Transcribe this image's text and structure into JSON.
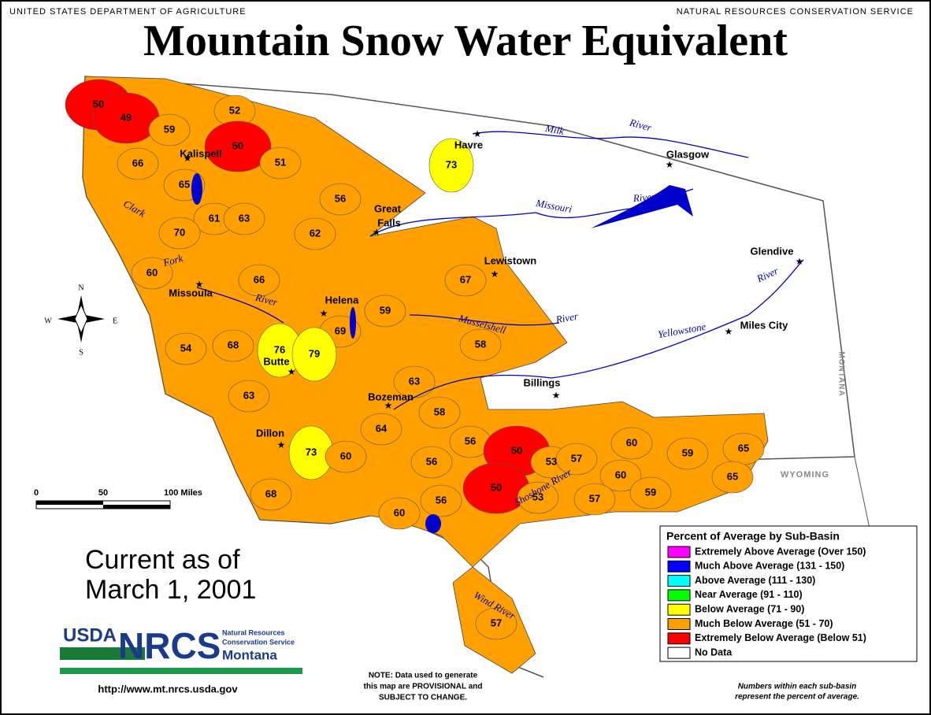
{
  "header": {
    "left": "UNITED STATES DEPARTMENT OF AGRICULTURE",
    "right": "NATURAL RESOURCES CONSERVATION SERVICE",
    "title": "Mountain Snow Water Equivalent"
  },
  "basins": [
    {
      "value": 50,
      "color": "#ff0000"
    },
    {
      "value": 49,
      "color": "#ff0000"
    },
    {
      "value": 52,
      "color": "#ffa000"
    },
    {
      "value": 59,
      "color": "#ffa000"
    },
    {
      "value": 50,
      "color": "#ff0000"
    },
    {
      "value": 66,
      "color": "#ffa000"
    },
    {
      "value": 51,
      "color": "#ffa000"
    },
    {
      "value": 65,
      "color": "#ffa000"
    },
    {
      "value": 56,
      "color": "#ffa000"
    },
    {
      "value": 73,
      "color": "#ffff00"
    },
    {
      "value": 61,
      "color": "#ffa000"
    },
    {
      "value": 63,
      "color": "#ffa000"
    },
    {
      "value": 70,
      "color": "#ffa000"
    },
    {
      "value": 62,
      "color": "#ffa000"
    },
    {
      "value": 67,
      "color": "#ffa000"
    },
    {
      "value": 60,
      "color": "#ffa000"
    },
    {
      "value": 66,
      "color": "#ffa000"
    },
    {
      "value": 59,
      "color": "#ffa000"
    },
    {
      "value": 69,
      "color": "#ffa000"
    },
    {
      "value": 58,
      "color": "#ffa000"
    },
    {
      "value": 54,
      "color": "#ffa000"
    },
    {
      "value": 68,
      "color": "#ffa000"
    },
    {
      "value": 76,
      "color": "#ffff00"
    },
    {
      "value": 79,
      "color": "#ffff00"
    },
    {
      "value": 63,
      "color": "#ffa000"
    },
    {
      "value": 63,
      "color": "#ffa000"
    },
    {
      "value": 58,
      "color": "#ffa000"
    },
    {
      "value": 64,
      "color": "#ffa000"
    },
    {
      "value": 56,
      "color": "#ffa000"
    },
    {
      "value": 50,
      "color": "#ff0000"
    },
    {
      "value": 53,
      "color": "#ffa000"
    },
    {
      "value": 57,
      "color": "#ffa000"
    },
    {
      "value": 60,
      "color": "#ffa000"
    },
    {
      "value": 59,
      "color": "#ffa000"
    },
    {
      "value": 65,
      "color": "#ffa000"
    },
    {
      "value": 73,
      "color": "#ffff00"
    },
    {
      "value": 60,
      "color": "#ffa000"
    },
    {
      "value": 56,
      "color": "#ffa000"
    },
    {
      "value": 50,
      "color": "#ff0000"
    },
    {
      "value": 53,
      "color": "#ffa000"
    },
    {
      "value": 60,
      "color": "#ffa000"
    },
    {
      "value": 57,
      "color": "#ffa000"
    },
    {
      "value": 59,
      "color": "#ffa000"
    },
    {
      "value": 65,
      "color": "#ffa000"
    },
    {
      "value": 68,
      "color": "#ffa000"
    },
    {
      "value": 56,
      "color": "#ffa000"
    },
    {
      "value": 60,
      "color": "#ffa000"
    },
    {
      "value": 57,
      "color": "#ffa000"
    }
  ],
  "places": [
    "Kalispell",
    "Havre",
    "Glasgow",
    "Great",
    "Falls",
    "Lewistown",
    "Glendive",
    "Missoula",
    "Helena",
    "Miles City",
    "Butte",
    "Billings",
    "Bozeman",
    "Dillon"
  ],
  "rivers": [
    "Milk",
    "River",
    "Missouri",
    "River",
    "Clark",
    "Fork",
    "River",
    "Musselshell",
    "River",
    "Yellowstone",
    "River",
    "Shoshone River",
    "Wind River"
  ],
  "states": [
    "MONTANA",
    "WYOMING"
  ],
  "compass": [
    "N",
    "E",
    "S",
    "W"
  ],
  "scale": [
    "0",
    "50",
    "100 Miles"
  ],
  "current": [
    "Current as of",
    "March 1, 2001"
  ],
  "logo": {
    "usda": "USDA",
    "nrcs": "NRCS",
    "line1": "Natural Resources",
    "line2": "Conservation Service",
    "state": "Montana"
  },
  "url": "http://www.mt.nrcs.usda.gov",
  "note": [
    "NOTE: Data used to generate",
    "this map are PROVISIONAL and",
    "SUBJECT TO CHANGE."
  ],
  "legend": {
    "title": "Percent of Average by Sub-Basin",
    "items": [
      {
        "label": "Extremely Above Average (Over 150)",
        "color": "#ff00ff"
      },
      {
        "label": "Much Above Average (131 - 150)",
        "color": "#0000ff"
      },
      {
        "label": "Above Average (111 - 130)",
        "color": "#00ffff"
      },
      {
        "label": "Near Average (91 - 110)",
        "color": "#00ff00"
      },
      {
        "label": "Below Average (71 - 90)",
        "color": "#ffff00"
      },
      {
        "label": "Much Below Average (51 - 70)",
        "color": "#ffa000"
      },
      {
        "label": "Extremely Below Average (Below 51)",
        "color": "#ff0000"
      },
      {
        "label": "No Data",
        "color": "#ffffff"
      }
    ]
  },
  "footnote": [
    "Numbers within each sub-basin",
    "represent the percent of average."
  ]
}
